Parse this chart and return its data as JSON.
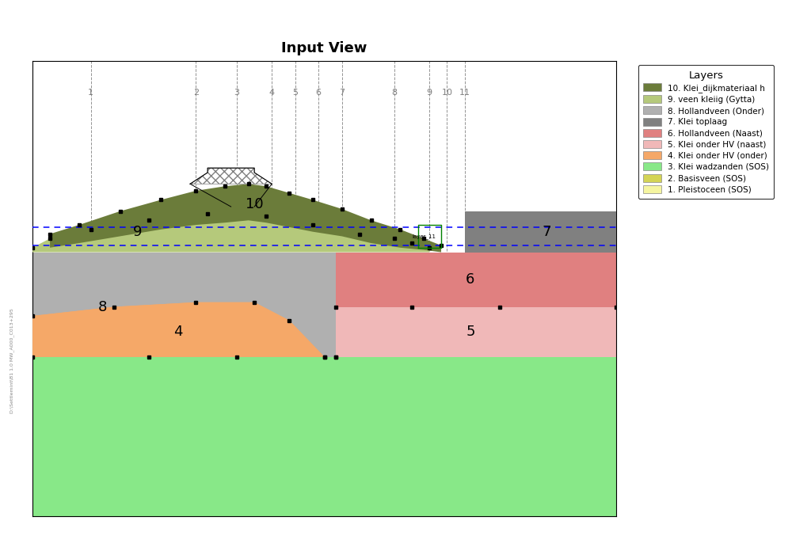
{
  "title": "Input View",
  "legend_title": "Layers",
  "c10": "#6b7c3a",
  "c9": "#b5c97b",
  "c8": "#b0b0b0",
  "c7": "#808080",
  "c6": "#e08080",
  "c5": "#f0b8b8",
  "c4": "#f5a868",
  "c3": "#88e888",
  "c2": "#d4d455",
  "c1": "#f5f5a0",
  "layer_names": [
    "10. Klei_dijkmateriaal h",
    "9. veen kleiig (Gytta)",
    "8. Hollandveen (Onder)",
    "7. Klei toplaag",
    "6. Hollandveen (Naast)",
    "5. Klei onder HV (naast)",
    "4. Klei onder HV (onder)",
    "3. Klei wadzanden (SOS)",
    "2. Basisveen (SOS)",
    "1. Pleistoceen (SOS)"
  ],
  "vline_labels": [
    "1",
    "2",
    "3",
    "4",
    "5",
    "6",
    "7",
    "8",
    "9",
    "10",
    "11"
  ],
  "dashed_y_upper": 0.595,
  "dashed_y_lower": 0.51,
  "xmin": 0,
  "xmax": 100,
  "ymin": 0,
  "ymax": 100
}
